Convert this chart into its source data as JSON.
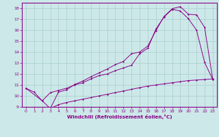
{
  "xlabel": "Windchill (Refroidissement éolien,°C)",
  "bg_color": "#cce8e8",
  "line_color": "#880088",
  "grid_color": "#aacccc",
  "xlim": [
    -0.5,
    23.5
  ],
  "ylim": [
    9,
    18.5
  ],
  "xticks": [
    0,
    1,
    2,
    3,
    4,
    5,
    6,
    7,
    8,
    9,
    10,
    11,
    12,
    13,
    14,
    15,
    16,
    17,
    18,
    19,
    20,
    21,
    22,
    23
  ],
  "yticks": [
    9,
    10,
    11,
    12,
    13,
    14,
    15,
    16,
    17,
    18
  ],
  "curve1_x": [
    0,
    1,
    2,
    3,
    4,
    5,
    6,
    7,
    8,
    9,
    10,
    11,
    12,
    13,
    14,
    15,
    16,
    17,
    18,
    19,
    20,
    21,
    22,
    23
  ],
  "curve1_y": [
    10.7,
    10.35,
    9.55,
    8.85,
    9.2,
    9.4,
    9.55,
    9.7,
    9.85,
    10.0,
    10.15,
    10.3,
    10.45,
    10.6,
    10.75,
    10.9,
    11.0,
    11.1,
    11.2,
    11.3,
    11.4,
    11.45,
    11.5,
    11.55
  ],
  "curve2_x": [
    0,
    2,
    3,
    4,
    5,
    6,
    7,
    8,
    9,
    10,
    11,
    12,
    13,
    14,
    15,
    16,
    17,
    18,
    19,
    20,
    21,
    22,
    23
  ],
  "curve2_y": [
    10.7,
    9.55,
    10.3,
    10.5,
    10.7,
    11.0,
    11.2,
    11.55,
    11.85,
    12.0,
    12.3,
    12.55,
    12.8,
    13.85,
    14.35,
    16.1,
    17.2,
    17.9,
    17.75,
    17.05,
    16.0,
    13.05,
    11.5
  ],
  "curve3_x": [
    3,
    4,
    5,
    6,
    7,
    8,
    9,
    10,
    11,
    12,
    13,
    14,
    15,
    16,
    17,
    18,
    19,
    20,
    21,
    22,
    23
  ],
  "curve3_y": [
    8.85,
    10.35,
    10.55,
    11.05,
    11.35,
    11.75,
    12.1,
    12.45,
    12.85,
    13.15,
    13.85,
    14.0,
    14.55,
    15.95,
    17.25,
    17.95,
    18.15,
    17.45,
    17.4,
    16.25,
    11.5
  ]
}
